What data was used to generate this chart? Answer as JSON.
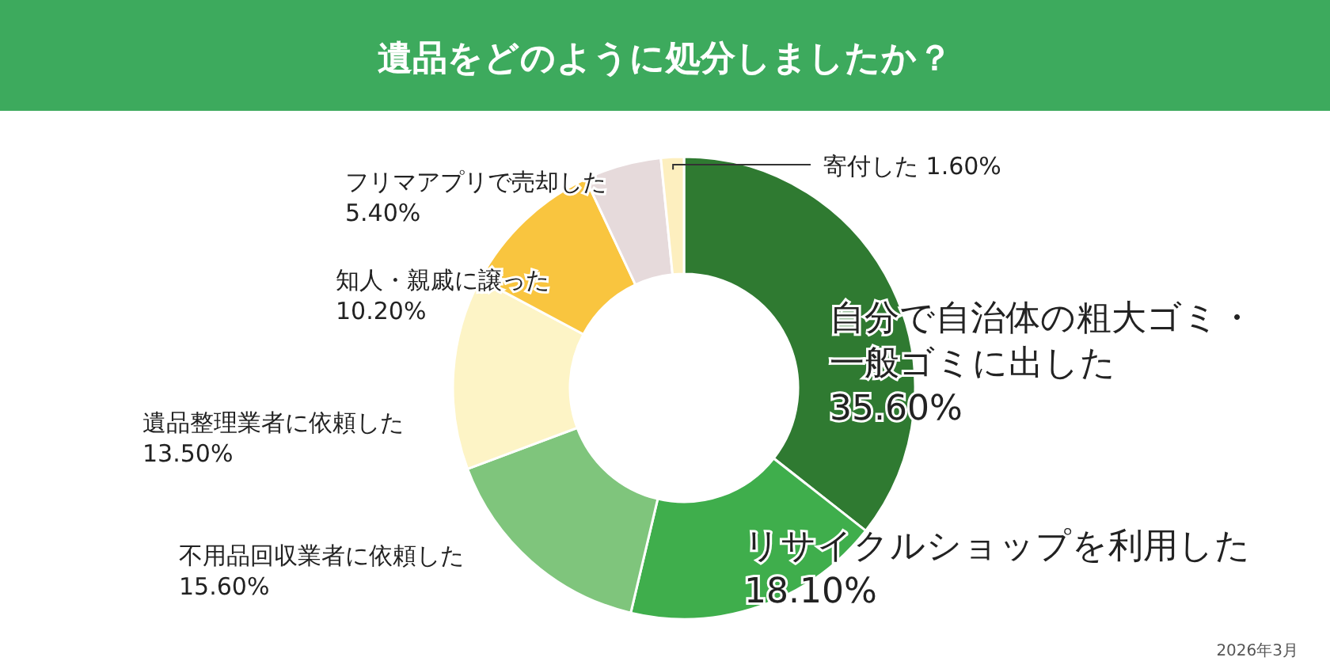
{
  "chart_data": {
    "type": "donut",
    "title": "遺品をどのように処分しましたか？",
    "categories": [
      "自分で自治体の粗大ゴミ・一般ゴミに出した",
      "リサイクルショップを利用した",
      "不用品回収業者に依頼した",
      "遺品整理業者に依頼した",
      "知人・親戚に譲った",
      "フリマアプリで売却した",
      "寄付した"
    ],
    "values": [
      35.6,
      18.1,
      15.6,
      13.5,
      10.2,
      5.4,
      1.6
    ],
    "value_labels": [
      "35.60%",
      "18.10%",
      "15.60%",
      "13.50%",
      "10.20%",
      "5.40%",
      "1.60%"
    ],
    "colors": [
      "#2f7a31",
      "#3fae4c",
      "#7fc57c",
      "#fdf4c6",
      "#f9c53f",
      "#e6dadb",
      "#fdefbf"
    ],
    "annotations": [
      "2026年3月"
    ]
  }
}
